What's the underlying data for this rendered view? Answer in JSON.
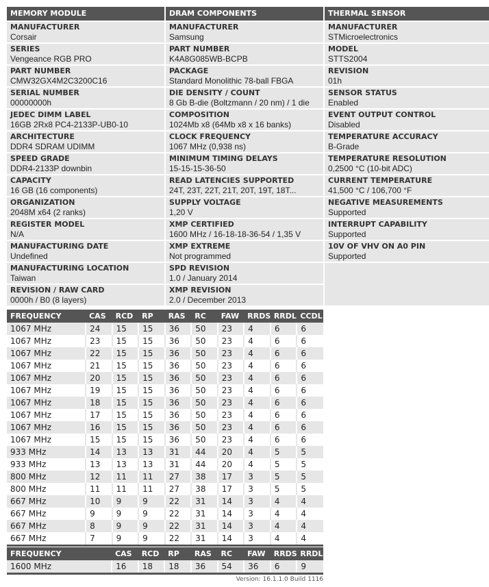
{
  "memory_module": {
    "title": "MEMORY MODULE",
    "items": [
      {
        "label": "MANUFACTURER",
        "value": "Corsair"
      },
      {
        "label": "SERIES",
        "value": "Vengeance RGB PRO"
      },
      {
        "label": "PART NUMBER",
        "value": "CMW32GX4M2C3200C16"
      },
      {
        "label": "SERIAL NUMBER",
        "value": "00000000h"
      },
      {
        "label": "JEDEC DIMM LABEL",
        "value": "16GB 2Rx8 PC4-2133P-UB0-10"
      },
      {
        "label": "ARCHITECTURE",
        "value": "DDR4 SDRAM UDIMM"
      },
      {
        "label": "SPEED GRADE",
        "value": "DDR4-2133P downbin"
      },
      {
        "label": "CAPACITY",
        "value": "16 GB (16 components)"
      },
      {
        "label": "ORGANIZATION",
        "value": "2048M x64 (2 ranks)"
      },
      {
        "label": "REGISTER MODEL",
        "value": "N/A"
      },
      {
        "label": "MANUFACTURING DATE",
        "value": "Undefined"
      },
      {
        "label": "MANUFACTURING LOCATION",
        "value": "Taiwan"
      },
      {
        "label": "REVISION / RAW CARD",
        "value": "0000h / B0 (8 layers)"
      }
    ]
  },
  "dram_components": {
    "title": "DRAM COMPONENTS",
    "items": [
      {
        "label": "MANUFACTURER",
        "value": "Samsung"
      },
      {
        "label": "PART NUMBER",
        "value": "K4A8G085WB-BCPB"
      },
      {
        "label": "PACKAGE",
        "value": "Standard Monolithic 78-ball FBGA"
      },
      {
        "label": "DIE DENSITY / COUNT",
        "value": "8 Gb B-die (Boltzmann / 20 nm) / 1 die"
      },
      {
        "label": "COMPOSITION",
        "value": "1024Mb x8 (64Mb x8 x 16 banks)"
      },
      {
        "label": "CLOCK FREQUENCY",
        "value": "1067 MHz (0,938 ns)"
      },
      {
        "label": "MINIMUM TIMING DELAYS",
        "value": "15-15-15-36-50"
      },
      {
        "label": "READ LATENCIES SUPPORTED",
        "value": "24T, 23T, 22T, 21T, 20T, 19T, 18T..."
      },
      {
        "label": "SUPPLY VOLTAGE",
        "value": "1,20 V"
      },
      {
        "label": "XMP CERTIFIED",
        "value": "1600 MHz / 16-18-18-36-54 / 1,35 V"
      },
      {
        "label": "XMP EXTREME",
        "value": "Not programmed"
      },
      {
        "label": "SPD REVISION",
        "value": "1.0 / January 2014"
      },
      {
        "label": "XMP REVISION",
        "value": "2.0 / December 2013"
      }
    ]
  },
  "thermal_sensor": {
    "title": "THERMAL SENSOR",
    "items": [
      {
        "label": "MANUFACTURER",
        "value": "STMicroelectronics"
      },
      {
        "label": "MODEL",
        "value": "STTS2004"
      },
      {
        "label": "REVISION",
        "value": "01h"
      },
      {
        "label": "SENSOR STATUS",
        "value": "Enabled"
      },
      {
        "label": "EVENT OUTPUT CONTROL",
        "value": "Disabled"
      },
      {
        "label": "TEMPERATURE ACCURACY",
        "value": "B-Grade"
      },
      {
        "label": "TEMPERATURE RESOLUTION",
        "value": "0,2500 °C (10-bit ADC)"
      },
      {
        "label": "CURRENT TEMPERATURE",
        "value": "41,500 °C / 106,700 °F"
      },
      {
        "label": "NEGATIVE MEASUREMENTS",
        "value": "Supported"
      },
      {
        "label": "INTERRUPT CAPABILITY",
        "value": "Supported"
      },
      {
        "label": "10V OF VHV ON A0 PIN",
        "value": "Supported"
      }
    ]
  },
  "jedec_timings": {
    "headers": [
      "FREQUENCY",
      "CAS",
      "RCD",
      "RP",
      "RAS",
      "RC",
      "FAW",
      "RRDS",
      "RRDL",
      "CCDL"
    ],
    "rows": [
      [
        "1067 MHz",
        "24",
        "15",
        "15",
        "36",
        "50",
        "23",
        "4",
        "6",
        "6"
      ],
      [
        "1067 MHz",
        "23",
        "15",
        "15",
        "36",
        "50",
        "23",
        "4",
        "6",
        "6"
      ],
      [
        "1067 MHz",
        "22",
        "15",
        "15",
        "36",
        "50",
        "23",
        "4",
        "6",
        "6"
      ],
      [
        "1067 MHz",
        "21",
        "15",
        "15",
        "36",
        "50",
        "23",
        "4",
        "6",
        "6"
      ],
      [
        "1067 MHz",
        "20",
        "15",
        "15",
        "36",
        "50",
        "23",
        "4",
        "6",
        "6"
      ],
      [
        "1067 MHz",
        "19",
        "15",
        "15",
        "36",
        "50",
        "23",
        "4",
        "6",
        "6"
      ],
      [
        "1067 MHz",
        "18",
        "15",
        "15",
        "36",
        "50",
        "23",
        "4",
        "6",
        "6"
      ],
      [
        "1067 MHz",
        "17",
        "15",
        "15",
        "36",
        "50",
        "23",
        "4",
        "6",
        "6"
      ],
      [
        "1067 MHz",
        "16",
        "15",
        "15",
        "36",
        "50",
        "23",
        "4",
        "6",
        "6"
      ],
      [
        "1067 MHz",
        "15",
        "15",
        "15",
        "36",
        "50",
        "23",
        "4",
        "6",
        "6"
      ],
      [
        "933 MHz",
        "14",
        "13",
        "13",
        "31",
        "44",
        "20",
        "4",
        "5",
        "5"
      ],
      [
        "933 MHz",
        "13",
        "13",
        "13",
        "31",
        "44",
        "20",
        "4",
        "5",
        "5"
      ],
      [
        "800 MHz",
        "12",
        "11",
        "11",
        "27",
        "38",
        "17",
        "3",
        "5",
        "5"
      ],
      [
        "800 MHz",
        "11",
        "11",
        "11",
        "27",
        "38",
        "17",
        "3",
        "5",
        "5"
      ],
      [
        "667 MHz",
        "10",
        "9",
        "9",
        "22",
        "31",
        "14",
        "3",
        "4",
        "4"
      ],
      [
        "667 MHz",
        "9",
        "9",
        "9",
        "22",
        "31",
        "14",
        "3",
        "4",
        "4"
      ],
      [
        "667 MHz",
        "8",
        "9",
        "9",
        "22",
        "31",
        "14",
        "3",
        "4",
        "4"
      ],
      [
        "667 MHz",
        "7",
        "9",
        "9",
        "22",
        "31",
        "14",
        "3",
        "4",
        "4"
      ]
    ]
  },
  "xmp_timings": {
    "headers": [
      "FREQUENCY",
      "CAS",
      "RCD",
      "RP",
      "RAS",
      "RC",
      "FAW",
      "RRDS",
      "RRDL"
    ],
    "rows": [
      [
        "1600 MHz",
        "16",
        "18",
        "18",
        "36",
        "54",
        "36",
        "6",
        "9"
      ]
    ]
  },
  "version": "Version: 16.1.1.0 Build 1116"
}
